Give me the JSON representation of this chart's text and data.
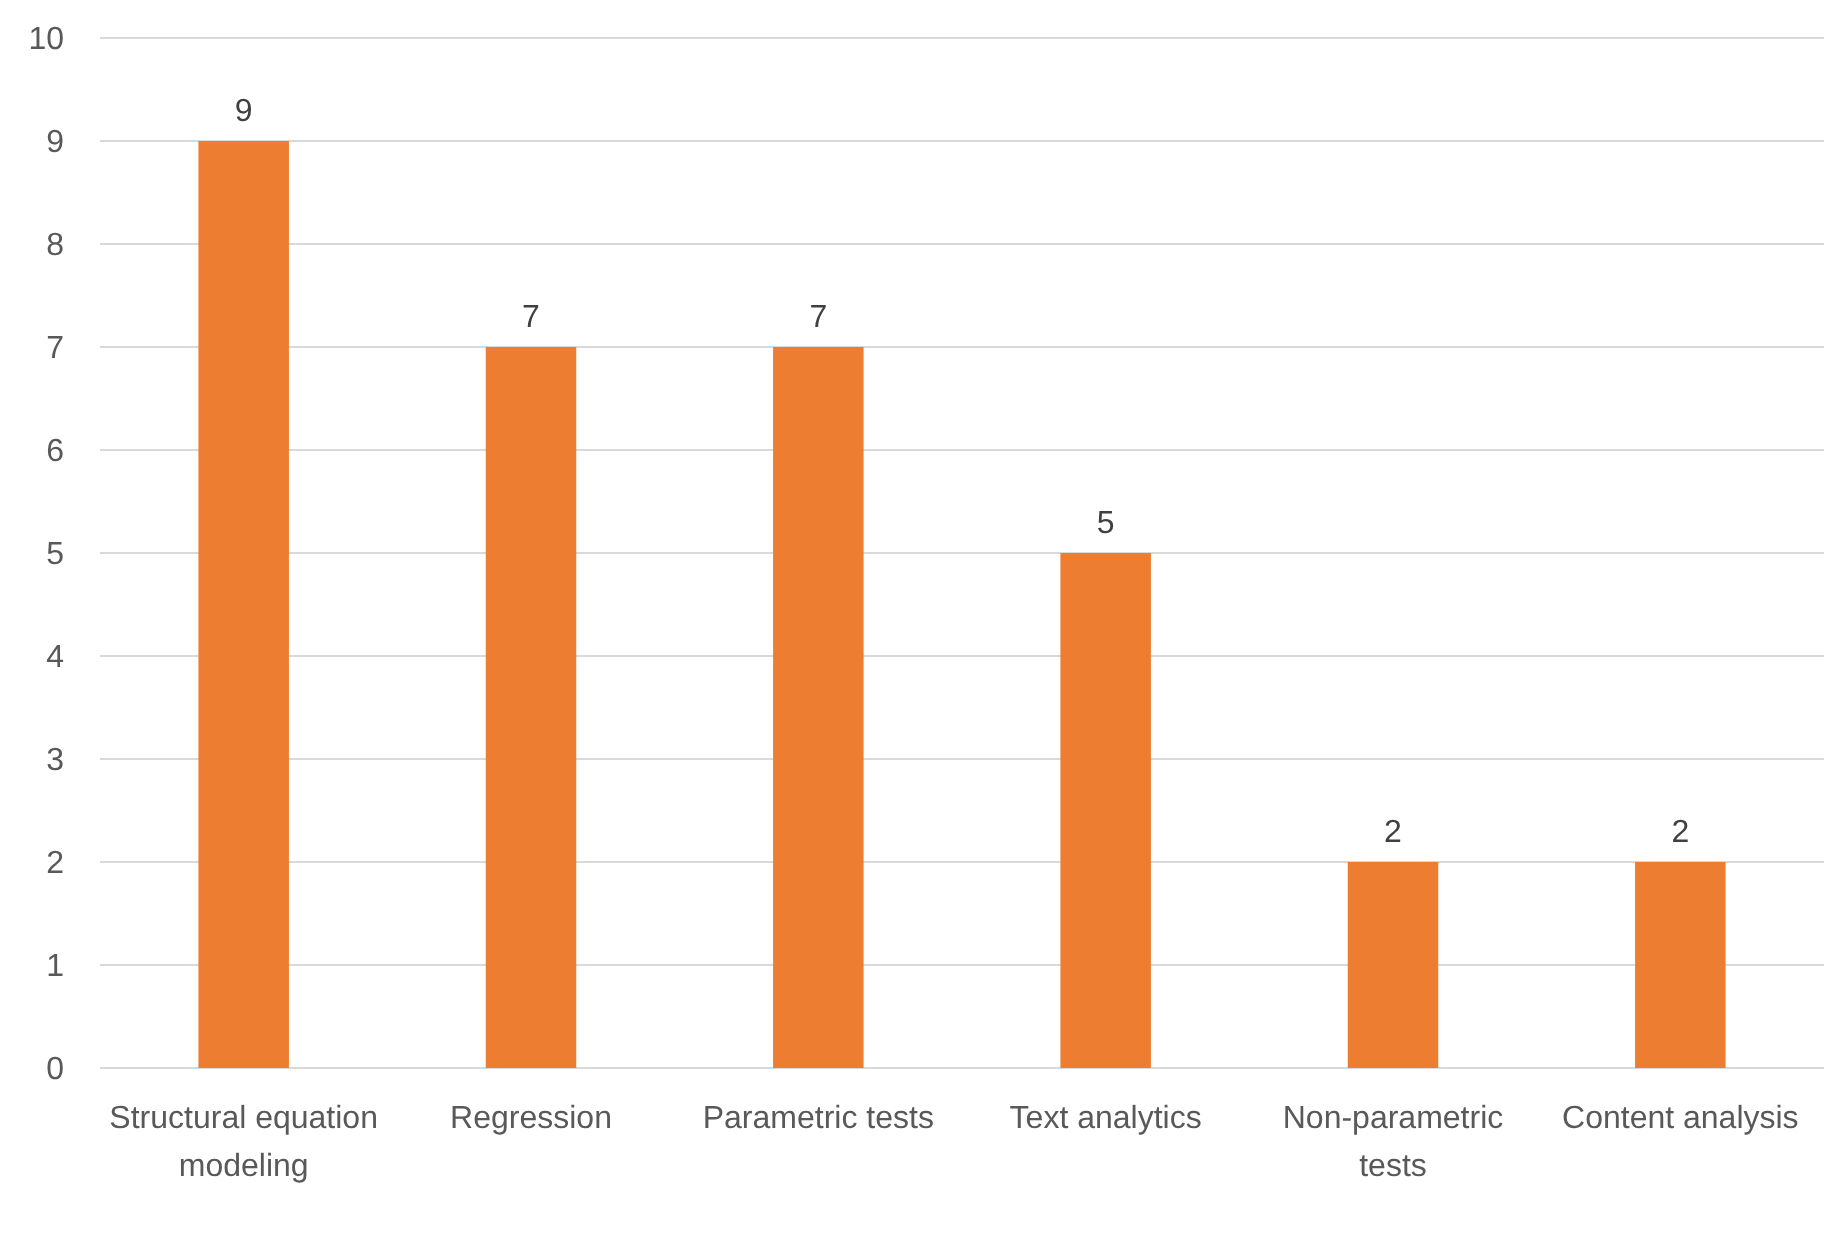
{
  "chart_data": {
    "type": "bar",
    "categories": [
      "Structural equation modeling",
      "Regression",
      "Parametric tests",
      "Text analytics",
      "Non-parametric tests",
      "Content analysis"
    ],
    "values": [
      9,
      7,
      7,
      5,
      2,
      2
    ],
    "color": "#ed7d31",
    "ylim": [
      0,
      10
    ],
    "yticks": [
      0,
      1,
      2,
      3,
      4,
      5,
      6,
      7,
      8,
      9,
      10
    ],
    "grid": "y",
    "data_labels": true
  }
}
